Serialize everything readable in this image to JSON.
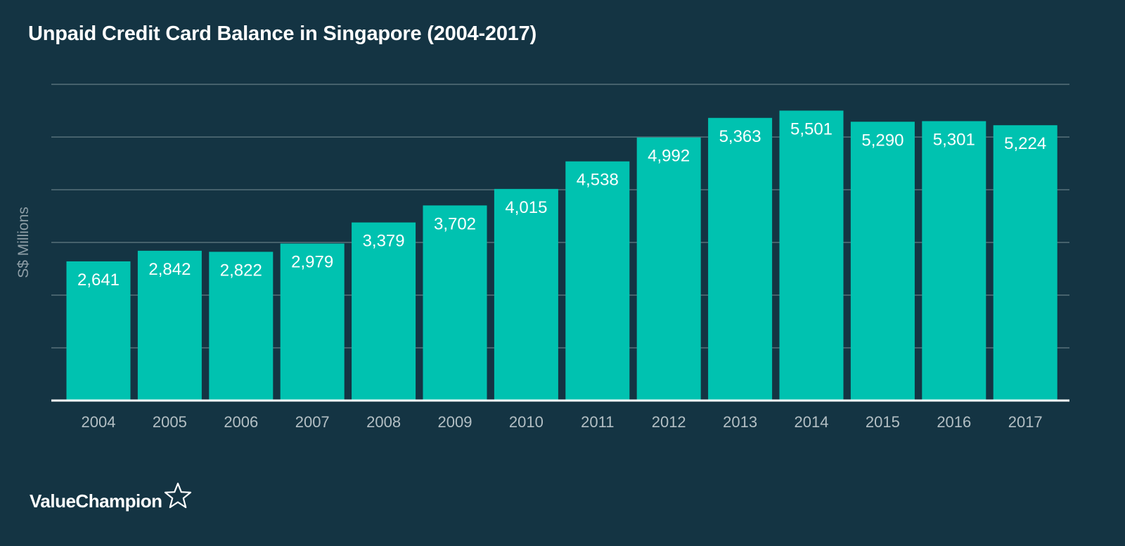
{
  "brand": {
    "name": "ValueChampion",
    "icon": "star-outline-icon"
  },
  "colors": {
    "background": "#143443",
    "bar": "#00c2b0",
    "gridline": "#56707b",
    "baseline": "#ffffff"
  },
  "chart_data": {
    "type": "bar",
    "title": "Unpaid Credit Card Balance in Singapore (2004-2017)",
    "xlabel": "",
    "ylabel": "S$ Millions",
    "ylim": [
      0,
      6000
    ],
    "grid": true,
    "categories": [
      "2004",
      "2005",
      "2006",
      "2007",
      "2008",
      "2009",
      "2010",
      "2011",
      "2012",
      "2013",
      "2014",
      "2015",
      "2016",
      "2017"
    ],
    "values": [
      2641,
      2842,
      2822,
      2979,
      3379,
      3702,
      4015,
      4538,
      4992,
      5363,
      5501,
      5290,
      5301,
      5224
    ],
    "value_labels": [
      "2,641",
      "2,842",
      "2,822",
      "2,979",
      "3,379",
      "3,702",
      "4,015",
      "4,538",
      "4,992",
      "5,363",
      "5,501",
      "5,290",
      "5,301",
      "5,224"
    ]
  }
}
